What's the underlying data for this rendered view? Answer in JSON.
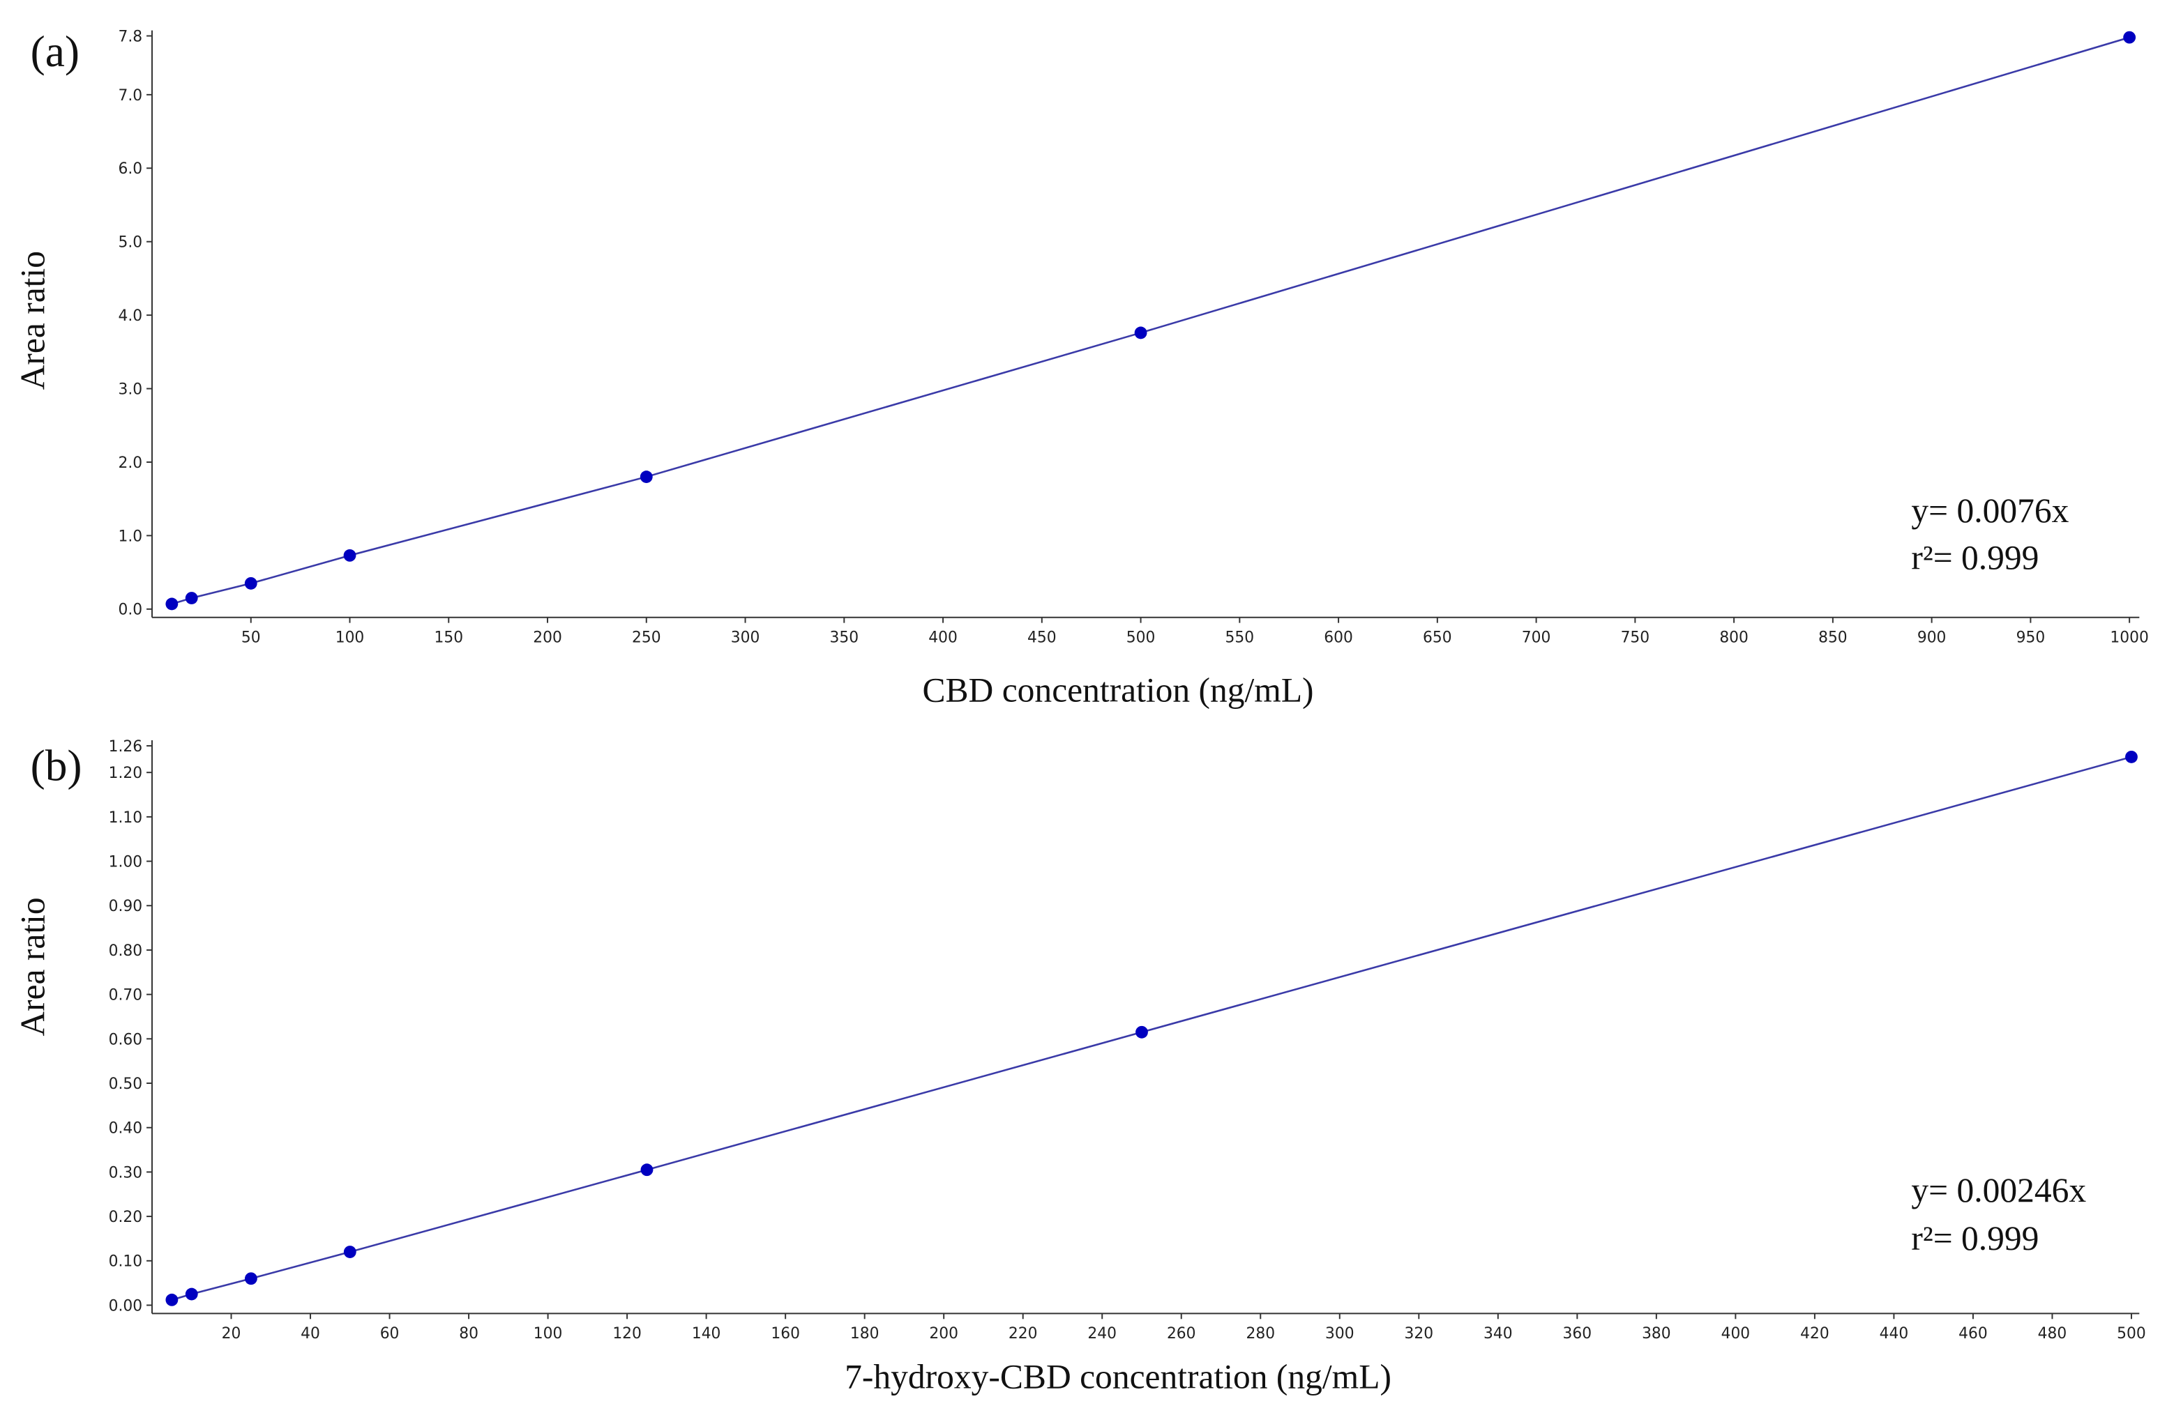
{
  "chart_data": [
    {
      "type": "scatter",
      "panel": "(a)",
      "xlabel": "CBD concentration (ng/mL)",
      "ylabel": "Area ratio",
      "annotations": [
        "y= 0.0076x",
        "r²= 0.999"
      ],
      "x": [
        10,
        20,
        50,
        100,
        250,
        500,
        1000
      ],
      "series": [
        {
          "name": "CBD",
          "color": "#0000c0",
          "line_color": "#3a3aa8",
          "values": [
            0.07,
            0.15,
            0.35,
            0.73,
            1.8,
            3.76,
            7.78
          ]
        }
      ],
      "xlim": [
        0,
        1005
      ],
      "xticks": [
        50,
        100,
        150,
        200,
        250,
        300,
        350,
        400,
        450,
        500,
        550,
        600,
        650,
        700,
        750,
        800,
        850,
        900,
        950,
        1000
      ],
      "ylim": [
        0,
        7.8
      ],
      "yticks": [
        {
          "value": 0,
          "label": "0.0"
        },
        {
          "value": 1,
          "label": "1.0"
        },
        {
          "value": 2,
          "label": "2.0"
        },
        {
          "value": 3,
          "label": "3.0"
        },
        {
          "value": 4,
          "label": "4.0"
        },
        {
          "value": 5,
          "label": "5.0"
        },
        {
          "value": 6,
          "label": "6.0"
        },
        {
          "value": 7,
          "label": "7.0"
        },
        7.8
      ],
      "line": true,
      "grid": false
    },
    {
      "type": "scatter",
      "panel": "(b)",
      "xlabel": "7-hydroxy-CBD concentration (ng/mL)",
      "ylabel": "Area ratio",
      "annotations": [
        "y= 0.00246x",
        "r²= 0.999"
      ],
      "x": [
        5,
        10,
        25,
        50,
        125,
        250,
        500
      ],
      "series": [
        {
          "name": "7-hydroxy-CBD",
          "color": "#0000c0",
          "line_color": "#3a3aa8",
          "values": [
            0.012,
            0.025,
            0.06,
            0.12,
            0.305,
            0.615,
            1.235
          ]
        }
      ],
      "xlim": [
        0,
        502
      ],
      "xticks": [
        20,
        40,
        60,
        80,
        100,
        120,
        140,
        160,
        180,
        200,
        220,
        240,
        260,
        280,
        300,
        320,
        340,
        360,
        380,
        400,
        420,
        440,
        460,
        480,
        500
      ],
      "ylim": [
        0,
        1.26
      ],
      "yticks": [
        {
          "value": 0,
          "label": "0.00"
        },
        {
          "value": 0.1,
          "label": "0.10"
        },
        {
          "value": 0.2,
          "label": "0.20"
        },
        {
          "value": 0.3,
          "label": "0.30"
        },
        {
          "value": 0.4,
          "label": "0.40"
        },
        {
          "value": 0.5,
          "label": "0.50"
        },
        {
          "value": 0.6,
          "label": "0.60"
        },
        {
          "value": 0.7,
          "label": "0.70"
        },
        {
          "value": 0.8,
          "label": "0.80"
        },
        {
          "value": 0.9,
          "label": "0.90"
        },
        {
          "value": 1,
          "label": "1.00"
        },
        {
          "value": 1.1,
          "label": "1.10"
        },
        {
          "value": 1.2,
          "label": "1.20"
        },
        1.26
      ],
      "line": true,
      "grid": false
    }
  ]
}
